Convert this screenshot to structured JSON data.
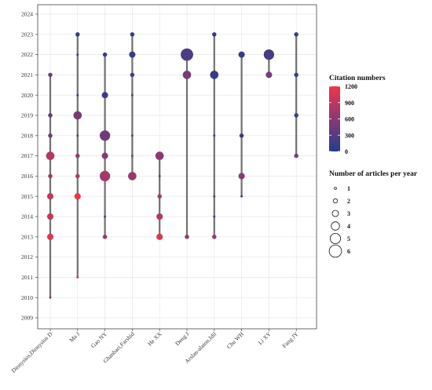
{
  "chart_data": {
    "type": "scatter",
    "title": "",
    "xlabel": "",
    "ylabel": "",
    "categories": [
      "Dionysios,Dionysios D",
      "Ma J",
      "Gao NY",
      "Ghanbari,Farshid",
      "He XX",
      "Deng J",
      "Arslan-alaton,Idil",
      "Chu WH",
      "Li XY",
      "Fang JY"
    ],
    "y_ticks": [
      "2009",
      "2010",
      "2011",
      "2012",
      "2013",
      "2014",
      "2015",
      "2016",
      "2017",
      "2018",
      "2019",
      "2020",
      "2021",
      "2022",
      "2023",
      "2024"
    ],
    "ylim": [
      2009,
      2024
    ],
    "grid": true,
    "legend_position": "right",
    "points": [
      {
        "author": "Dionysios,Dionysios D",
        "year": 2010,
        "articles": 1,
        "citations": 700
      },
      {
        "author": "Dionysios,Dionysios D",
        "year": 2013,
        "articles": 3,
        "citations": 1150
      },
      {
        "author": "Dionysios,Dionysios D",
        "year": 2014,
        "articles": 3,
        "citations": 1000
      },
      {
        "author": "Dionysios,Dionysios D",
        "year": 2015,
        "articles": 3,
        "citations": 950
      },
      {
        "author": "Dionysios,Dionysios D",
        "year": 2016,
        "articles": 2,
        "citations": 700
      },
      {
        "author": "Dionysios,Dionysios D",
        "year": 2017,
        "articles": 4,
        "citations": 850
      },
      {
        "author": "Dionysios,Dionysios D",
        "year": 2018,
        "articles": 2,
        "citations": 450
      },
      {
        "author": "Dionysios,Dionysios D",
        "year": 2019,
        "articles": 2,
        "citations": 350
      },
      {
        "author": "Dionysios,Dionysios D",
        "year": 2021,
        "articles": 2,
        "citations": 450
      },
      {
        "author": "Ma J",
        "year": 2011,
        "articles": 1,
        "citations": 1100
      },
      {
        "author": "Ma J",
        "year": 2015,
        "articles": 3,
        "citations": 1200
      },
      {
        "author": "Ma J",
        "year": 2016,
        "articles": 2,
        "citations": 800
      },
      {
        "author": "Ma J",
        "year": 2017,
        "articles": 2,
        "citations": 650
      },
      {
        "author": "Ma J",
        "year": 2018,
        "articles": 1,
        "citations": 450
      },
      {
        "author": "Ma J",
        "year": 2019,
        "articles": 4,
        "citations": 500
      },
      {
        "author": "Ma J",
        "year": 2020,
        "articles": 1,
        "citations": 150
      },
      {
        "author": "Ma J",
        "year": 2022,
        "articles": 1,
        "citations": 100
      },
      {
        "author": "Ma J",
        "year": 2023,
        "articles": 2,
        "citations": 100
      },
      {
        "author": "Gao NY",
        "year": 2013,
        "articles": 2,
        "citations": 650
      },
      {
        "author": "Gao NY",
        "year": 2014,
        "articles": 1,
        "citations": 200
      },
      {
        "author": "Gao NY",
        "year": 2016,
        "articles": 5,
        "citations": 750
      },
      {
        "author": "Gao NY",
        "year": 2017,
        "articles": 3,
        "citations": 550
      },
      {
        "author": "Gao NY",
        "year": 2018,
        "articles": 5,
        "citations": 450
      },
      {
        "author": "Gao NY",
        "year": 2020,
        "articles": 3,
        "citations": 150
      },
      {
        "author": "Gao NY",
        "year": 2022,
        "articles": 2,
        "citations": 100
      },
      {
        "author": "Ghanbari,Farshid",
        "year": 2016,
        "articles": 4,
        "citations": 700
      },
      {
        "author": "Ghanbari,Farshid",
        "year": 2017,
        "articles": 1,
        "citations": 450
      },
      {
        "author": "Ghanbari,Farshid",
        "year": 2018,
        "articles": 1,
        "citations": 350
      },
      {
        "author": "Ghanbari,Farshid",
        "year": 2020,
        "articles": 1,
        "citations": 350
      },
      {
        "author": "Ghanbari,Farshid",
        "year": 2021,
        "articles": 2,
        "citations": 150
      },
      {
        "author": "Ghanbari,Farshid",
        "year": 2022,
        "articles": 3,
        "citations": 100
      },
      {
        "author": "Ghanbari,Farshid",
        "year": 2023,
        "articles": 2,
        "citations": 100
      },
      {
        "author": "He XX",
        "year": 2013,
        "articles": 3,
        "citations": 1100
      },
      {
        "author": "He XX",
        "year": 2014,
        "articles": 3,
        "citations": 850
      },
      {
        "author": "He XX",
        "year": 2015,
        "articles": 2,
        "citations": 750
      },
      {
        "author": "He XX",
        "year": 2016,
        "articles": 1,
        "citations": 450
      },
      {
        "author": "He XX",
        "year": 2017,
        "articles": 4,
        "citations": 600
      },
      {
        "author": "Deng J",
        "year": 2013,
        "articles": 2,
        "citations": 700
      },
      {
        "author": "Deng J",
        "year": 2021,
        "articles": 4,
        "citations": 500
      },
      {
        "author": "Deng J",
        "year": 2022,
        "articles": 6,
        "citations": 250
      },
      {
        "author": "Arslan-alaton,Idil",
        "year": 2013,
        "articles": 2,
        "citations": 650
      },
      {
        "author": "Arslan-alaton,Idil",
        "year": 2014,
        "articles": 1,
        "citations": 150
      },
      {
        "author": "Arslan-alaton,Idil",
        "year": 2015,
        "articles": 1,
        "citations": 250
      },
      {
        "author": "Arslan-alaton,Idil",
        "year": 2018,
        "articles": 1,
        "citations": 150
      },
      {
        "author": "Arslan-alaton,Idil",
        "year": 2021,
        "articles": 4,
        "citations": 100
      },
      {
        "author": "Arslan-alaton,Idil",
        "year": 2023,
        "articles": 2,
        "citations": 100
      },
      {
        "author": "Chu WH",
        "year": 2015,
        "articles": 1,
        "citations": 200
      },
      {
        "author": "Chu WH",
        "year": 2016,
        "articles": 3,
        "citations": 600
      },
      {
        "author": "Chu WH",
        "year": 2018,
        "articles": 2,
        "citations": 150
      },
      {
        "author": "Chu WH",
        "year": 2022,
        "articles": 3,
        "citations": 100
      },
      {
        "author": "Li XY",
        "year": 2021,
        "articles": 3,
        "citations": 500
      },
      {
        "author": "Li XY",
        "year": 2022,
        "articles": 5,
        "citations": 200
      },
      {
        "author": "Fang JY",
        "year": 2017,
        "articles": 2,
        "citations": 450
      },
      {
        "author": "Fang JY",
        "year": 2019,
        "articles": 2,
        "citations": 100
      },
      {
        "author": "Fang JY",
        "year": 2021,
        "articles": 2,
        "citations": 100
      },
      {
        "author": "Fang JY",
        "year": 2023,
        "articles": 2,
        "citations": 100
      }
    ],
    "color_legend": {
      "title": "Citation numbers",
      "ticks": [
        "1200",
        "900",
        "600",
        "300",
        "0"
      ],
      "range": [
        0,
        1200
      ],
      "low_color": "#233d8e",
      "mid_color": "#8a3a73",
      "high_color": "#f0334b"
    },
    "size_legend": {
      "title": "Number of articles per year",
      "labels": [
        "1",
        "2",
        "3",
        "4",
        "5",
        "6"
      ]
    },
    "colors": {
      "panel_border": "#444444",
      "grid_line": "#e6e6e6",
      "stem_line": "#707070"
    }
  }
}
